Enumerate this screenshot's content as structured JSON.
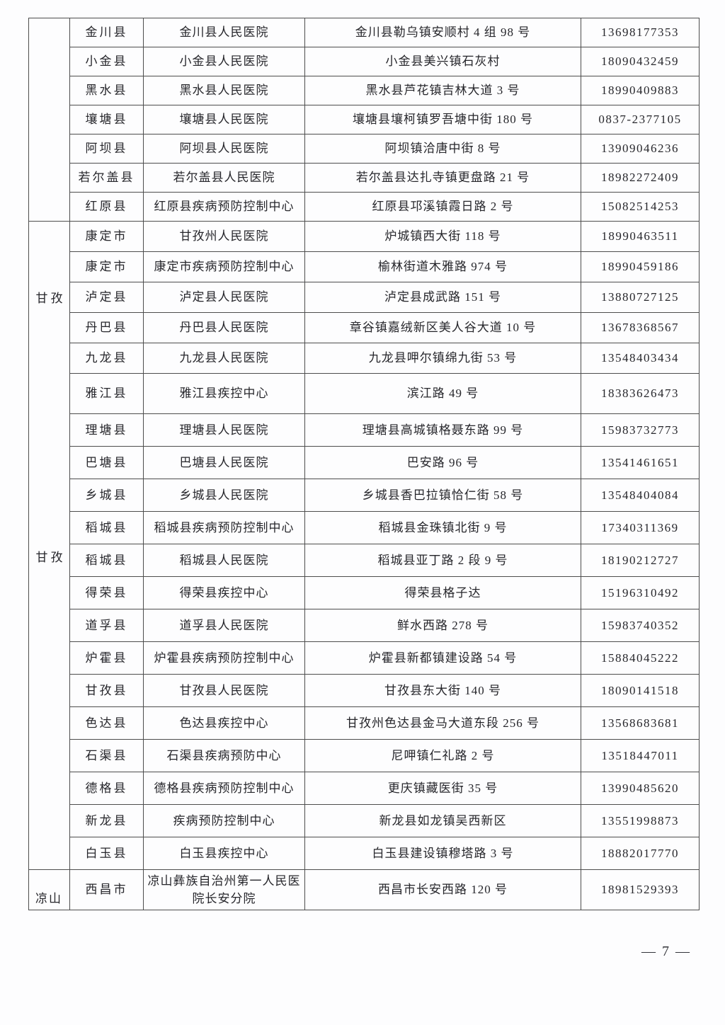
{
  "document": {
    "page_footer": "— 7 —",
    "page_number": "7"
  },
  "colors": {
    "text": "#26262b",
    "border": "#4d4d4d",
    "background": "#fdfdfe"
  },
  "table": {
    "columns": [
      "prefecture",
      "county",
      "institution",
      "address",
      "phone"
    ],
    "sections": [
      {
        "prefecture_labels": [],
        "label_style": "none",
        "rows": [
          [
            "金川县",
            "金川县人民医院",
            "金川县勒乌镇安顺村 4 组 98 号",
            "13698177353"
          ],
          [
            "小金县",
            "小金县人民医院",
            "小金县美兴镇石灰村",
            "18090432459"
          ],
          [
            "黑水县",
            "黑水县人民医院",
            "黑水县芦花镇吉林大道 3 号",
            "18990409883"
          ],
          [
            "壤塘县",
            "壤塘县人民医院",
            "壤塘县壤柯镇罗吾塘中街 180 号",
            "0837-2377105"
          ],
          [
            "阿坝县",
            "阿坝县人民医院",
            "阿坝镇洽唐中街 8 号",
            "13909046236"
          ],
          [
            "若尔盖县",
            "若尔盖县人民医院",
            "若尔盖县达扎寺镇更盘路 21 号",
            "18982272409"
          ],
          [
            "红原县",
            "红原县疾病预防控制中心",
            "红原县邛溪镇霞日路 2 号",
            "15082514253"
          ]
        ]
      },
      {
        "prefecture_labels": [
          "甘孜",
          "甘孜"
        ],
        "label_style": "repeated",
        "rows": [
          [
            "康定市",
            "甘孜州人民医院",
            "炉城镇西大街 118 号",
            "18990463511"
          ],
          [
            "康定市",
            "康定市疾病预防控制中心",
            "榆林街道木雅路 974 号",
            "18990459186"
          ],
          [
            "泸定县",
            "泸定县人民医院",
            "泸定县成武路 151 号",
            "13880727125"
          ],
          [
            "丹巴县",
            "丹巴县人民医院",
            "章谷镇嘉绒新区美人谷大道 10 号",
            "13678368567"
          ],
          [
            "九龙县",
            "九龙县人民医院",
            "九龙县呷尔镇绵九街 53 号",
            "13548403434"
          ],
          [
            "雅江县",
            "雅江县疾控中心",
            "滨江路 49 号",
            "18383626473"
          ],
          [
            "理塘县",
            "理塘县人民医院",
            "理塘县高城镇格聂东路 99 号",
            "15983732773"
          ],
          [
            "巴塘县",
            "巴塘县人民医院",
            "巴安路 96 号",
            "13541461651"
          ],
          [
            "乡城县",
            "乡城县人民医院",
            "乡城县香巴拉镇恰仁街 58 号",
            "13548404084"
          ],
          [
            "稻城县",
            "稻城县疾病预防控制中心",
            "稻城县金珠镇北街 9 号",
            "17340311369"
          ],
          [
            "稻城县",
            "稻城县人民医院",
            "稻城县亚丁路 2 段 9 号",
            "18190212727"
          ],
          [
            "得荣县",
            "得荣县疾控中心",
            "得荣县格子达",
            "15196310492"
          ],
          [
            "道孚县",
            "道孚县人民医院",
            "鲜水西路 278 号",
            "15983740352"
          ],
          [
            "炉霍县",
            "炉霍县疾病预防控制中心",
            "炉霍县新都镇建设路 54 号",
            "15884045222"
          ],
          [
            "甘孜县",
            "甘孜县人民医院",
            "甘孜县东大街 140 号",
            "18090141518"
          ],
          [
            "色达县",
            "色达县疾控中心",
            "甘孜州色达县金马大道东段 256 号",
            "13568683681"
          ],
          [
            "石渠县",
            "石渠县疾病预防中心",
            "尼呷镇仁礼路 2 号",
            "13518447011"
          ],
          [
            "德格县",
            "德格县疾病预防控制中心",
            "更庆镇藏医街 35 号",
            "13990485620"
          ],
          [
            "新龙县",
            "疾病预防控制中心",
            "新龙县如龙镇吴西新区",
            "13551998873"
          ],
          [
            "白玉县",
            "白玉县疾控中心",
            "白玉县建设镇穆塔路 3 号",
            "18882017770"
          ]
        ]
      },
      {
        "prefecture_labels": [
          "凉山"
        ],
        "label_style": "bottom",
        "rows": [
          [
            "西昌市",
            "凉山彝族自治州第一人民医院长安分院",
            "西昌市长安西路 120 号",
            "18981529393"
          ]
        ]
      }
    ]
  }
}
